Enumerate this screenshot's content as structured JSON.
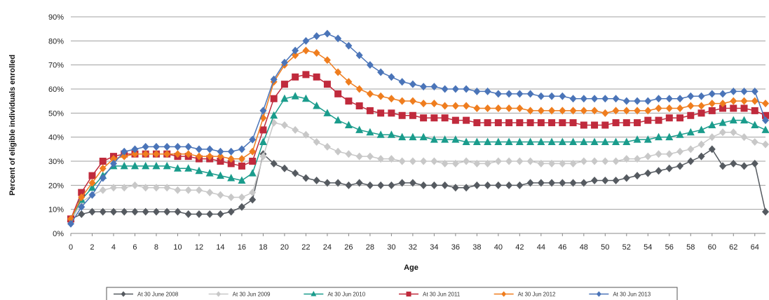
{
  "chart_data": {
    "type": "line",
    "title": "",
    "xlabel": "Age",
    "ylabel": "Percent of eligible individuals enrolled",
    "ylim": [
      0,
      90
    ],
    "xlim": [
      0,
      65
    ],
    "grid": "horizontal",
    "legend_position": "bottom",
    "x_tick_labels": [
      "0",
      "2",
      "4",
      "6",
      "8",
      "10",
      "12",
      "14",
      "16",
      "18",
      "20",
      "22",
      "24",
      "26",
      "28",
      "30",
      "32",
      "34",
      "36",
      "38",
      "40",
      "42",
      "44",
      "46",
      "48",
      "50",
      "52",
      "54",
      "56",
      "58",
      "60",
      "62",
      "64"
    ],
    "y_tick_labels": [
      "0%",
      "10%",
      "20%",
      "30%",
      "40%",
      "50%",
      "60%",
      "70%",
      "80%",
      "90%"
    ],
    "series": [
      {
        "name": "At 30 June 2008",
        "color": "#555a60",
        "marker": "diamond",
        "values": [
          6,
          8,
          9,
          9,
          9,
          9,
          9,
          9,
          9,
          9,
          9,
          8,
          8,
          8,
          8,
          9,
          11,
          14,
          33,
          29,
          27,
          25,
          23,
          22,
          21,
          21,
          20,
          21,
          20,
          20,
          20,
          21,
          21,
          20,
          20,
          20,
          19,
          19,
          20,
          20,
          20,
          20,
          20,
          21,
          21,
          21,
          21,
          21,
          21,
          22,
          22,
          22,
          23,
          24,
          25,
          26,
          27,
          28,
          30,
          32,
          35,
          28,
          29,
          28,
          29,
          9
        ]
      },
      {
        "name": "At 30 Jun 2009",
        "color": "#c8c8c8",
        "marker": "diamond",
        "values": [
          5,
          13,
          16,
          18,
          19,
          19,
          20,
          19,
          19,
          19,
          18,
          18,
          18,
          17,
          16,
          15,
          15,
          17,
          32,
          46,
          45,
          43,
          41,
          38,
          36,
          34,
          33,
          32,
          32,
          31,
          31,
          30,
          30,
          30,
          30,
          29,
          29,
          30,
          29,
          29,
          30,
          30,
          30,
          30,
          29,
          29,
          29,
          29,
          30,
          30,
          30,
          30,
          31,
          31,
          32,
          33,
          33,
          34,
          35,
          37,
          40,
          42,
          42,
          40,
          38,
          37
        ]
      },
      {
        "name": "At 30 Jun 2010",
        "color": "#1a9c8c",
        "marker": "triangle",
        "values": [
          6,
          14,
          19,
          24,
          28,
          28,
          28,
          28,
          28,
          28,
          27,
          27,
          26,
          25,
          24,
          23,
          22,
          25,
          38,
          49,
          56,
          57,
          56,
          53,
          50,
          47,
          45,
          43,
          42,
          41,
          41,
          40,
          40,
          40,
          39,
          39,
          39,
          38,
          38,
          38,
          38,
          38,
          38,
          38,
          38,
          38,
          38,
          38,
          38,
          38,
          38,
          38,
          38,
          39,
          39,
          40,
          40,
          41,
          42,
          43,
          45,
          46,
          47,
          47,
          45,
          43
        ]
      },
      {
        "name": "At 30 Jun 2011",
        "color": "#c02a3c",
        "marker": "square",
        "values": [
          6,
          17,
          24,
          30,
          32,
          33,
          33,
          33,
          33,
          33,
          32,
          32,
          31,
          31,
          30,
          29,
          28,
          30,
          43,
          56,
          62,
          65,
          66,
          65,
          62,
          58,
          55,
          53,
          51,
          50,
          50,
          49,
          49,
          48,
          48,
          48,
          47,
          47,
          46,
          46,
          46,
          46,
          46,
          46,
          46,
          46,
          46,
          46,
          45,
          45,
          45,
          46,
          46,
          46,
          47,
          47,
          48,
          48,
          49,
          50,
          51,
          52,
          52,
          52,
          51,
          49
        ]
      },
      {
        "name": "At 30 Jun 2012",
        "color": "#ef7d1e",
        "marker": "diamond",
        "values": [
          6,
          15,
          21,
          27,
          31,
          32,
          33,
          33,
          33,
          33,
          33,
          33,
          32,
          32,
          32,
          31,
          31,
          34,
          48,
          63,
          70,
          74,
          76,
          75,
          72,
          67,
          63,
          60,
          58,
          57,
          56,
          55,
          55,
          54,
          54,
          53,
          53,
          53,
          52,
          52,
          52,
          52,
          52,
          51,
          51,
          51,
          51,
          51,
          51,
          51,
          50,
          51,
          51,
          51,
          51,
          52,
          52,
          52,
          53,
          53,
          54,
          54,
          55,
          55,
          55,
          54
        ]
      },
      {
        "name": "At 30 Jun 2013",
        "color": "#4a74b8",
        "marker": "diamond",
        "values": [
          4,
          11,
          16,
          23,
          29,
          34,
          35,
          36,
          36,
          36,
          36,
          36,
          35,
          35,
          34,
          34,
          35,
          39,
          51,
          64,
          71,
          76,
          80,
          82,
          83,
          81,
          78,
          74,
          70,
          67,
          65,
          63,
          62,
          61,
          61,
          60,
          60,
          60,
          59,
          59,
          58,
          58,
          58,
          58,
          57,
          57,
          57,
          56,
          56,
          56,
          56,
          56,
          55,
          55,
          55,
          56,
          56,
          56,
          57,
          57,
          58,
          58,
          59,
          59,
          59,
          47
        ]
      }
    ]
  }
}
